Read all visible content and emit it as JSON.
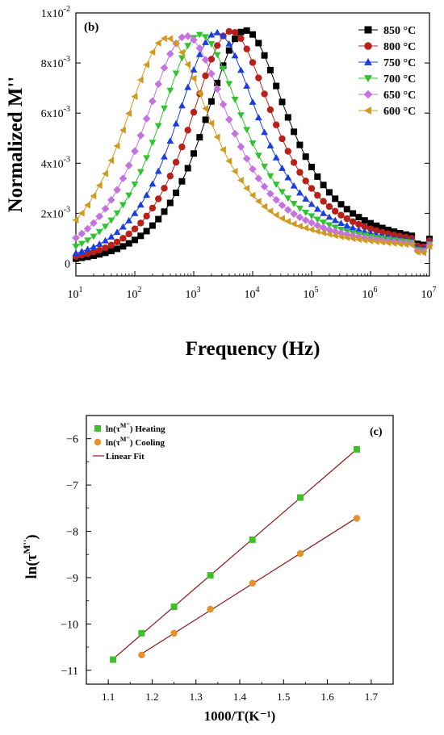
{
  "chart_data": [
    {
      "type": "line",
      "panel_label": "(b)",
      "xlabel": "Frequency (Hz)",
      "ylabel": "Normalized M''",
      "x_scale": "log",
      "xlim": [
        10,
        10000000
      ],
      "x_ticks": [
        {
          "value": 10,
          "base": "10",
          "exp": "1"
        },
        {
          "value": 100,
          "base": "10",
          "exp": "2"
        },
        {
          "value": 1000,
          "base": "10",
          "exp": "3"
        },
        {
          "value": 10000,
          "base": "10",
          "exp": "4"
        },
        {
          "value": 100000,
          "base": "10",
          "exp": "5"
        },
        {
          "value": 1000000,
          "base": "10",
          "exp": "6"
        },
        {
          "value": 10000000,
          "base": "10",
          "exp": "7"
        }
      ],
      "ylim": [
        -0.0005,
        0.01
      ],
      "y_ticks": [
        {
          "value": 0,
          "mant": "0",
          "exp": ""
        },
        {
          "value": 0.002,
          "mant": "2x10",
          "exp": "-3"
        },
        {
          "value": 0.004,
          "mant": "4x10",
          "exp": "-3"
        },
        {
          "value": 0.006,
          "mant": "6x10",
          "exp": "-3"
        },
        {
          "value": 0.008,
          "mant": "8x10",
          "exp": "-3"
        },
        {
          "value": 0.01,
          "mant": "1x10",
          "exp": "-2"
        }
      ],
      "grid": false,
      "legend_position": "top-right",
      "series": [
        {
          "name": "850 °C",
          "marker": "square",
          "color": "#000000",
          "peak_freq": 7000,
          "peak": 0.00882,
          "width": 1.12,
          "plateau": 0.00123
        },
        {
          "name": "800 °C",
          "marker": "circle",
          "color": "#b8201a",
          "peak_freq": 4000,
          "peak": 0.00881,
          "width": 1.12,
          "plateau": 0.00118
        },
        {
          "name": "750 °C",
          "marker": "triangle-up",
          "color": "#1a3de0",
          "peak_freq": 2300,
          "peak": 0.00878,
          "width": 1.12,
          "plateau": 0.00112
        },
        {
          "name": "700 °C",
          "marker": "triangle-down",
          "color": "#2fc42f",
          "peak_freq": 1200,
          "peak": 0.00872,
          "width": 1.14,
          "plateau": 0.00105
        },
        {
          "name": "650 °C",
          "marker": "diamond",
          "color": "#c472e0",
          "peak_freq": 700,
          "peak": 0.00869,
          "width": 1.16,
          "plateau": 0.001
        },
        {
          "name": "600 °C",
          "marker": "triangle-left",
          "color": "#d19a1e",
          "peak_freq": 330,
          "peak": 0.00863,
          "width": 1.18,
          "plateau": 0.00095
        }
      ]
    },
    {
      "type": "scatter",
      "panel_label": "(c)",
      "xlabel": "1000/T(K⁻¹)",
      "ylabel_main": "ln(τ",
      "ylabel_sup": "M''",
      "ylabel_close": ")",
      "xlim": [
        1.05,
        1.75
      ],
      "x_ticks": [
        "1.1",
        "1.2",
        "1.3",
        "1.4",
        "1.5",
        "1.6",
        "1.7"
      ],
      "ylim": [
        -11.3,
        -5.5
      ],
      "y_ticks": [
        "-11",
        "-10",
        "-9",
        "-8",
        "-7",
        "-6"
      ],
      "grid": false,
      "legend_position": "top-left",
      "legend": [
        {
          "label_main": "ln(τ",
          "label_sup": "M''",
          "label_tail": ") Heating",
          "marker": "square",
          "color": "#3fbf2a"
        },
        {
          "label_main": "ln(τ",
          "label_sup": "M''",
          "label_tail": ") Cooling",
          "marker": "circle",
          "color": "#e8902a"
        },
        {
          "label": "Linear Fit",
          "marker": "line",
          "color": "#8b1a1a"
        }
      ],
      "series": [
        {
          "name": "Heating",
          "color": "#3fbf2a",
          "marker": "square",
          "x": [
            1.111,
            1.176,
            1.25,
            1.333,
            1.429,
            1.538,
            1.667
          ],
          "y": [
            -10.77,
            -10.2,
            -9.63,
            -8.95,
            -8.18,
            -7.27,
            -6.23
          ]
        },
        {
          "name": "Cooling",
          "color": "#e8902a",
          "marker": "circle",
          "x": [
            1.176,
            1.25,
            1.333,
            1.429,
            1.538,
            1.667
          ],
          "y": [
            -10.67,
            -10.2,
            -9.68,
            -9.12,
            -8.48,
            -7.72
          ]
        }
      ],
      "fit_color": "#8b1a1a"
    }
  ]
}
